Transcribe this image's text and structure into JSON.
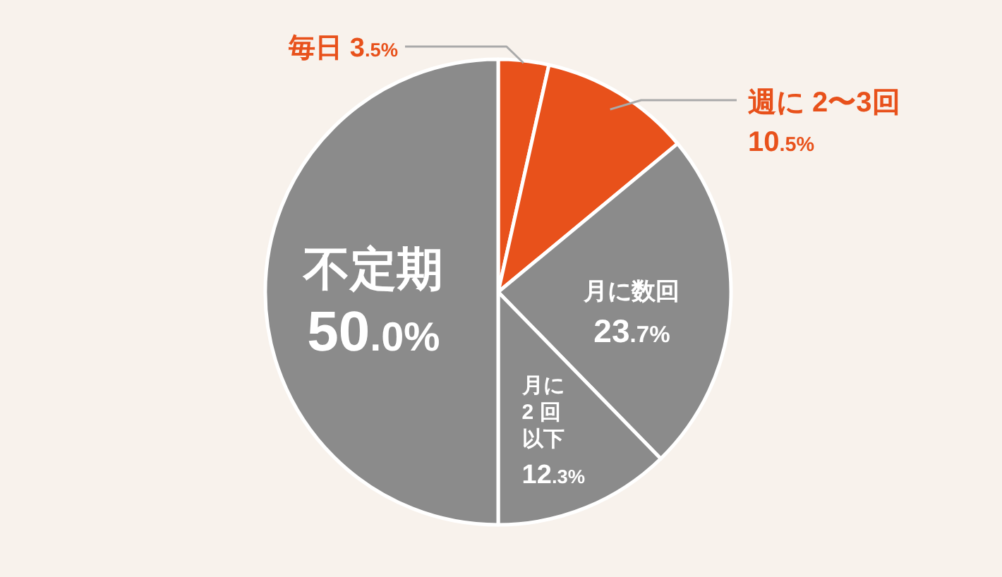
{
  "chart_data": {
    "type": "pie",
    "categories": [
      "毎日",
      "週に 2〜3回",
      "月に数回",
      "月に2 回以下",
      "不定期"
    ],
    "values": [
      3.5,
      10.5,
      23.7,
      12.3,
      50.0
    ],
    "colors": [
      "#e8511b",
      "#e8511b",
      "#8b8b8b",
      "#8b8b8b",
      "#8b8b8b"
    ],
    "value_labels": [
      "3.5%",
      "10.5%",
      "23.7%",
      "12.3%",
      "50.0%"
    ]
  }
}
